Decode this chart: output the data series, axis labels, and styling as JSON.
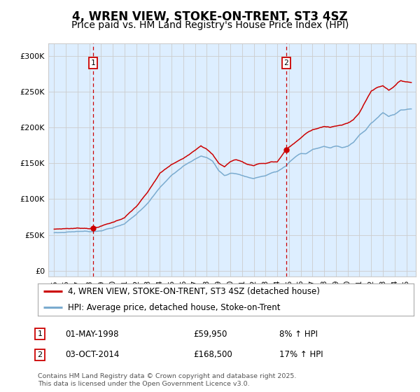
{
  "title": "4, WREN VIEW, STOKE-ON-TRENT, ST3 4SZ",
  "subtitle": "Price paid vs. HM Land Registry's House Price Index (HPI)",
  "yticks": [
    0,
    50000,
    100000,
    150000,
    200000,
    250000,
    300000
  ],
  "ytick_labels": [
    "£0",
    "£50K",
    "£100K",
    "£150K",
    "£200K",
    "£250K",
    "£300K"
  ],
  "ylim": [
    -8000,
    318000
  ],
  "xlim_left": 1994.5,
  "xlim_right": 2025.8,
  "marker1_year": 1998.33,
  "marker1_price": 59950,
  "marker1_date": "01-MAY-1998",
  "marker1_pct": "8%",
  "marker2_year": 2014.75,
  "marker2_price": 168500,
  "marker2_date": "03-OCT-2014",
  "marker2_pct": "17%",
  "line1_color": "#cc0000",
  "line2_color": "#7aabcf",
  "marker_line_color": "#cc0000",
  "grid_color": "#cccccc",
  "plot_bg_color": "#ddeeff",
  "fig_bg_color": "#ffffff",
  "legend_line1": "4, WREN VIEW, STOKE-ON-TRENT, ST3 4SZ (detached house)",
  "legend_line2": "HPI: Average price, detached house, Stoke-on-Trent",
  "footnote": "Contains HM Land Registry data © Crown copyright and database right 2025.\nThis data is licensed under the Open Government Licence v3.0.",
  "title_fontsize": 12,
  "subtitle_fontsize": 10,
  "tick_fontsize": 8,
  "legend_fontsize": 8.5,
  "red_anchors": [
    [
      1995.0,
      58000
    ],
    [
      1996.0,
      59000
    ],
    [
      1997.0,
      59500
    ],
    [
      1998.33,
      59950
    ],
    [
      1999.0,
      63000
    ],
    [
      2000.0,
      68000
    ],
    [
      2001.0,
      75000
    ],
    [
      2002.0,
      90000
    ],
    [
      2003.0,
      110000
    ],
    [
      2004.0,
      135000
    ],
    [
      2005.0,
      147000
    ],
    [
      2006.0,
      155000
    ],
    [
      2007.0,
      168000
    ],
    [
      2007.5,
      175000
    ],
    [
      2008.0,
      170000
    ],
    [
      2008.5,
      162000
    ],
    [
      2009.0,
      150000
    ],
    [
      2009.5,
      145000
    ],
    [
      2010.0,
      152000
    ],
    [
      2010.5,
      155000
    ],
    [
      2011.0,
      152000
    ],
    [
      2011.5,
      148000
    ],
    [
      2012.0,
      147000
    ],
    [
      2012.5,
      150000
    ],
    [
      2013.0,
      150000
    ],
    [
      2013.5,
      152000
    ],
    [
      2014.0,
      152000
    ],
    [
      2014.75,
      168500
    ],
    [
      2015.0,
      172000
    ],
    [
      2015.5,
      178000
    ],
    [
      2016.0,
      185000
    ],
    [
      2016.5,
      192000
    ],
    [
      2017.0,
      196000
    ],
    [
      2017.5,
      198000
    ],
    [
      2018.0,
      200000
    ],
    [
      2018.5,
      200000
    ],
    [
      2019.0,
      202000
    ],
    [
      2019.5,
      203000
    ],
    [
      2020.0,
      205000
    ],
    [
      2020.5,
      210000
    ],
    [
      2021.0,
      220000
    ],
    [
      2021.5,
      235000
    ],
    [
      2022.0,
      250000
    ],
    [
      2022.5,
      255000
    ],
    [
      2023.0,
      258000
    ],
    [
      2023.5,
      252000
    ],
    [
      2024.0,
      258000
    ],
    [
      2024.5,
      265000
    ],
    [
      2025.3,
      263000
    ]
  ],
  "blue_anchors": [
    [
      1995.0,
      53000
    ],
    [
      1996.0,
      54000
    ],
    [
      1997.0,
      55500
    ],
    [
      1998.33,
      56000
    ],
    [
      1999.0,
      58000
    ],
    [
      2000.0,
      62000
    ],
    [
      2001.0,
      67000
    ],
    [
      2002.0,
      80000
    ],
    [
      2003.0,
      97000
    ],
    [
      2004.0,
      118000
    ],
    [
      2005.0,
      135000
    ],
    [
      2006.0,
      148000
    ],
    [
      2007.0,
      158000
    ],
    [
      2007.5,
      162000
    ],
    [
      2008.0,
      160000
    ],
    [
      2008.5,
      155000
    ],
    [
      2009.0,
      142000
    ],
    [
      2009.5,
      135000
    ],
    [
      2010.0,
      138000
    ],
    [
      2010.5,
      138000
    ],
    [
      2011.0,
      136000
    ],
    [
      2011.5,
      133000
    ],
    [
      2012.0,
      131000
    ],
    [
      2012.5,
      133000
    ],
    [
      2013.0,
      134000
    ],
    [
      2013.5,
      138000
    ],
    [
      2014.0,
      140000
    ],
    [
      2014.75,
      147000
    ],
    [
      2015.0,
      152000
    ],
    [
      2015.5,
      158000
    ],
    [
      2016.0,
      163000
    ],
    [
      2016.5,
      163000
    ],
    [
      2017.0,
      168000
    ],
    [
      2017.5,
      170000
    ],
    [
      2018.0,
      172000
    ],
    [
      2018.5,
      170000
    ],
    [
      2019.0,
      172000
    ],
    [
      2019.5,
      170000
    ],
    [
      2020.0,
      172000
    ],
    [
      2020.5,
      178000
    ],
    [
      2021.0,
      188000
    ],
    [
      2021.5,
      195000
    ],
    [
      2022.0,
      205000
    ],
    [
      2022.5,
      212000
    ],
    [
      2023.0,
      220000
    ],
    [
      2023.5,
      215000
    ],
    [
      2024.0,
      218000
    ],
    [
      2024.5,
      224000
    ],
    [
      2025.3,
      226000
    ]
  ]
}
